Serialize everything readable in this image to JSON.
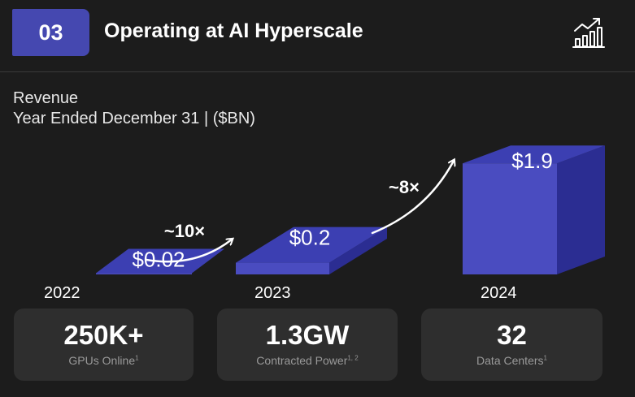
{
  "header": {
    "section_number": "03",
    "title": "Operating at AI Hyperscale",
    "icon": "growth-chart-icon"
  },
  "revenue": {
    "label": "Revenue",
    "subtitle": "Year Ended December 31  |  ($BN)"
  },
  "chart_data": {
    "type": "bar",
    "title": "Revenue",
    "subtitle": "Year Ended December 31  |  ($BN)",
    "categories": [
      "2022",
      "2023",
      "2024"
    ],
    "values": [
      0.02,
      0.2,
      1.9
    ],
    "value_labels": [
      "$0.02",
      "$0.2",
      "$1.9"
    ],
    "growth_annotations": [
      {
        "from": "2022",
        "to": "2023",
        "label": "~10×"
      },
      {
        "from": "2023",
        "to": "2024",
        "label": "~8×"
      }
    ],
    "style": "3d-blocks",
    "colors": {
      "front": "#4a4cc0",
      "top": "#3c3fb2",
      "side": "#2b2d92"
    },
    "grid": false,
    "legend": "none"
  },
  "stats": [
    {
      "value": "250K+",
      "label": "GPUs Online",
      "footnote": "1"
    },
    {
      "value": "1.3GW",
      "label": "Contracted Power",
      "footnote": "1, 2"
    },
    {
      "value": "32",
      "label": "Data Centers",
      "footnote": "1"
    }
  ],
  "colors": {
    "background": "#1c1c1c",
    "accent": "#4548b0",
    "card": "#2e2e2e",
    "muted_text": "#9a9a9a"
  }
}
